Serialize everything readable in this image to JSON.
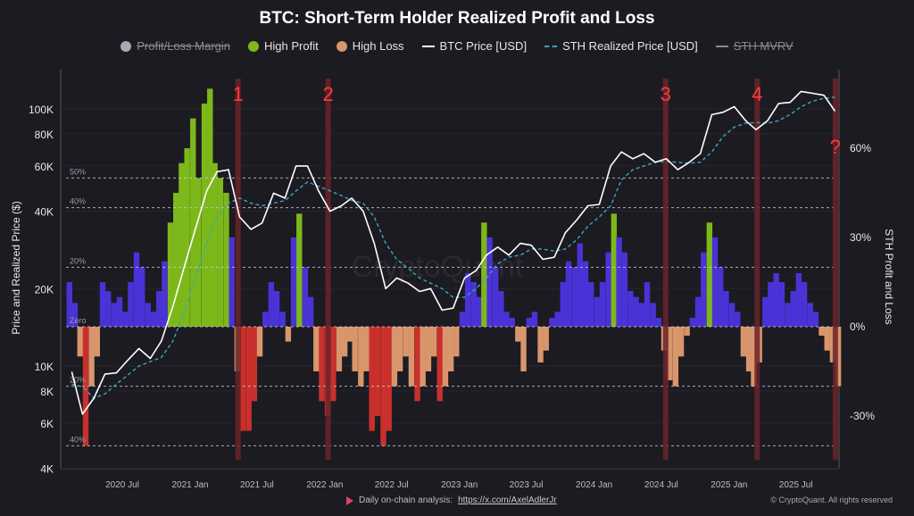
{
  "chart_data": {
    "type": "bar+line",
    "title": "BTC: Short-Term Holder Realized Profit and Loss",
    "legend": [
      {
        "label": "Profit/Loss Margin",
        "color": "#a9a9b2",
        "enabled": false,
        "kind": "dot"
      },
      {
        "label": "High Profit",
        "color": "#7db81a",
        "enabled": true,
        "kind": "dot"
      },
      {
        "label": "High Loss",
        "color": "#d9956b",
        "enabled": true,
        "kind": "dot"
      },
      {
        "label": "BTC Price [USD]",
        "color": "#ffffff",
        "enabled": true,
        "kind": "line"
      },
      {
        "label": "STH Realized Price [USD]",
        "color": "#3aa6c0",
        "enabled": true,
        "kind": "dash"
      },
      {
        "label": "STH MVRV",
        "color": "#8a8a90",
        "enabled": false,
        "kind": "line"
      }
    ],
    "legend_placement": "top",
    "ylabel_left": "Price and Realized Price ($)",
    "ylabel_right": "STH Profit and Loss",
    "y_left_scale": "log",
    "ylim_left": [
      4000,
      150000
    ],
    "ylim_right_percent": [
      -45,
      82
    ],
    "x_ticks": [
      "2020 Jul",
      "2021 Jan",
      "2021 Jul",
      "2022 Jan",
      "2022 Jul",
      "2023 Jan",
      "2023 Jul",
      "2024 Jan",
      "2024 Jul",
      "2025 Jan",
      "2025 Jul"
    ],
    "x_tick_dates": [
      "2020-07-01",
      "2021-01-01",
      "2021-07-01",
      "2022-01-01",
      "2022-07-01",
      "2023-01-01",
      "2023-07-01",
      "2024-01-01",
      "2024-07-01",
      "2025-01-01",
      "2025-07-01"
    ],
    "y_left_ticks": [
      {
        "v": 4000,
        "label": "4K"
      },
      {
        "v": 6000,
        "label": "6K"
      },
      {
        "v": 8000,
        "label": "8K"
      },
      {
        "v": 10000,
        "label": "10K"
      },
      {
        "v": 20000,
        "label": "20K"
      },
      {
        "v": 40000,
        "label": "40K"
      },
      {
        "v": 60000,
        "label": "60K"
      },
      {
        "v": 80000,
        "label": "80K"
      },
      {
        "v": 100000,
        "label": "100K"
      }
    ],
    "y_right_ticks": [
      {
        "v": 60,
        "label": "60%"
      },
      {
        "v": 30,
        "label": "30%"
      },
      {
        "v": 0,
        "label": "0%"
      },
      {
        "v": -30,
        "label": "-30%"
      }
    ],
    "inner_levels": [
      {
        "v": 50,
        "label": "50%"
      },
      {
        "v": 40,
        "label": "40%"
      },
      {
        "v": 20,
        "label": "20%"
      },
      {
        "v": 0,
        "label": "Zero"
      },
      {
        "v": -20,
        "label": "20%"
      },
      {
        "v": -40,
        "label": "40%"
      }
    ],
    "colors": {
      "positive": "#4a33d6",
      "high_profit": "#7db81a",
      "negative": "#d9956b",
      "high_loss": "#c9302c",
      "band": "#6a2329",
      "annotation": "#ff3b3b"
    },
    "annotations": [
      {
        "label": "1",
        "date": "2021-05-11"
      },
      {
        "label": "2",
        "date": "2022-01-10"
      },
      {
        "label": "3",
        "date": "2024-07-13"
      },
      {
        "label": "4",
        "date": "2025-03-18"
      },
      {
        "label": "?",
        "date": "2025-10-16"
      }
    ],
    "months_start": "2020-02",
    "btc_price_monthly": [
      9500,
      6500,
      7500,
      9300,
      9400,
      10500,
      11700,
      10700,
      12500,
      17000,
      24000,
      34000,
      48000,
      57000,
      58000,
      38000,
      34000,
      36000,
      47000,
      45000,
      60000,
      60000,
      48000,
      40000,
      42000,
      45000,
      40000,
      30000,
      20000,
      22000,
      21000,
      19500,
      20000,
      16500,
      16800,
      22000,
      23500,
      27000,
      29000,
      27000,
      30000,
      29500,
      26000,
      26500,
      33000,
      37000,
      42000,
      42500,
      60000,
      68000,
      64000,
      67000,
      62000,
      64000,
      58000,
      62000,
      67000,
      95000,
      97000,
      102000,
      90000,
      83000,
      90000,
      105000,
      106000,
      117000,
      115000,
      113000,
      98000
    ],
    "sth_realized_price_monthly": [
      8500,
      8300,
      7500,
      7800,
      8500,
      9200,
      10000,
      10400,
      10800,
      12500,
      16000,
      22000,
      30000,
      38000,
      43000,
      45000,
      43000,
      42000,
      43000,
      44000,
      48000,
      52000,
      50000,
      48000,
      46000,
      44000,
      43000,
      38000,
      30000,
      26000,
      24000,
      22000,
      21000,
      20000,
      18500,
      18500,
      20000,
      22000,
      25000,
      26500,
      27000,
      28500,
      28500,
      28000,
      28500,
      31000,
      35000,
      38000,
      42000,
      53000,
      58000,
      60000,
      62000,
      62500,
      62000,
      61500,
      62000,
      68000,
      78000,
      85000,
      88000,
      88500,
      88000,
      90000,
      95000,
      102000,
      107000,
      110000,
      111000
    ],
    "profit_loss_margin_semimonthly_percent": [
      15,
      8,
      -10,
      -40,
      -20,
      -10,
      15,
      12,
      8,
      10,
      5,
      15,
      25,
      20,
      8,
      5,
      12,
      22,
      35,
      45,
      55,
      60,
      70,
      50,
      75,
      80,
      55,
      50,
      45,
      30,
      -15,
      -35,
      -35,
      -25,
      -10,
      5,
      15,
      12,
      5,
      -5,
      30,
      38,
      20,
      10,
      -15,
      -25,
      -30,
      -25,
      -15,
      -10,
      -5,
      -15,
      -20,
      -15,
      -35,
      -30,
      -40,
      -35,
      -20,
      -15,
      -10,
      -20,
      -25,
      -20,
      -15,
      -10,
      -25,
      -20,
      -15,
      -10,
      5,
      18,
      15,
      10,
      35,
      30,
      20,
      12,
      5,
      3,
      -5,
      -15,
      3,
      5,
      -12,
      -8,
      3,
      5,
      15,
      22,
      20,
      28,
      22,
      15,
      10,
      15,
      25,
      38,
      30,
      25,
      12,
      10,
      8,
      15,
      8,
      3,
      -8,
      -18,
      -20,
      -10,
      -3,
      3,
      10,
      25,
      35,
      30,
      20,
      12,
      8,
      5,
      -10,
      -15,
      -20,
      -12,
      10,
      15,
      18,
      15,
      8,
      12,
      18,
      15,
      8,
      5,
      -3,
      -8,
      -12,
      -20
    ]
  },
  "watermark": "CryptoQuant",
  "footer": {
    "analysis_label": "Daily on-chain analysis:",
    "analysis_link": "https://x.com/AxelAdlerJr",
    "copyright": "© CryptoQuant. All rights reserved"
  }
}
